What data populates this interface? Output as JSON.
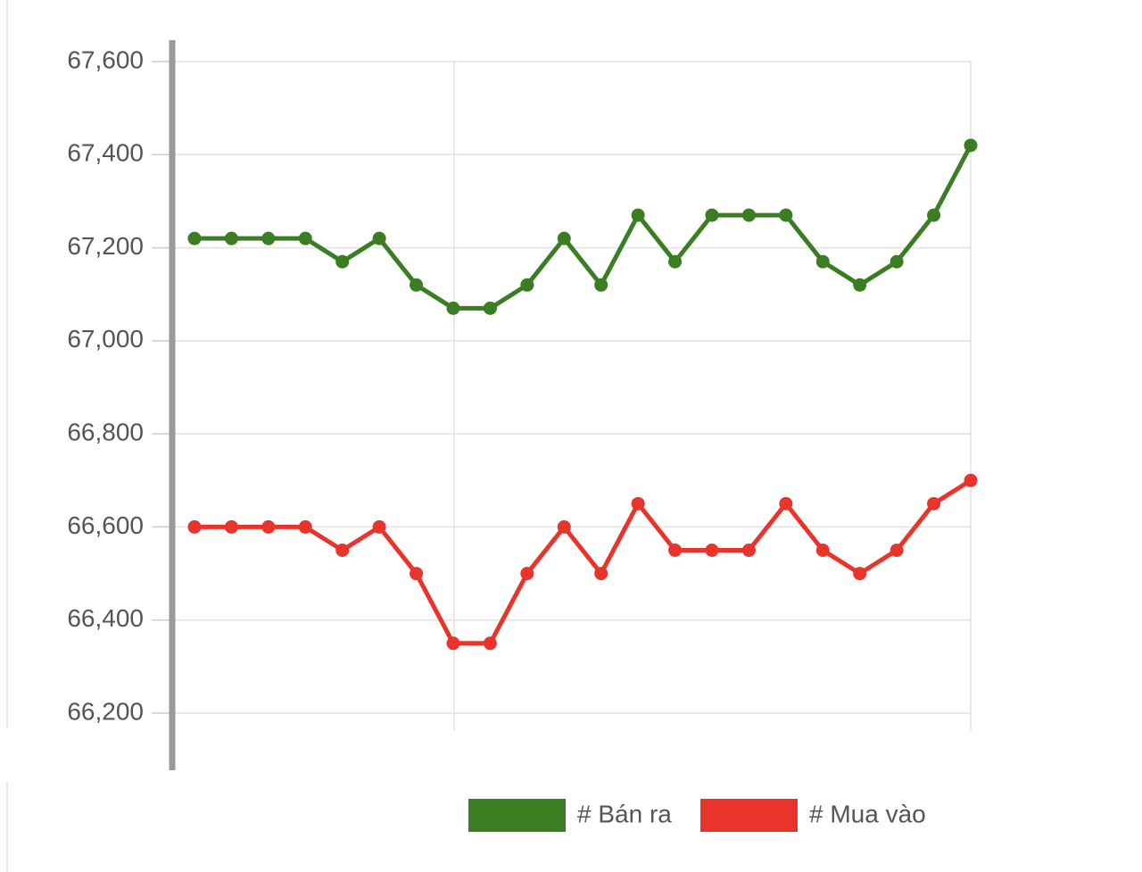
{
  "chart_data": {
    "type": "line",
    "categories": [
      null,
      null,
      null,
      null,
      null,
      null,
      null,
      null,
      null,
      null,
      null,
      null,
      null,
      null,
      null,
      null,
      null,
      null,
      null,
      null,
      null,
      null
    ],
    "series": [
      {
        "name": "# Bán ra",
        "color": "#3a7d22",
        "values": [
          67220,
          67220,
          67220,
          67220,
          67170,
          67220,
          67120,
          67070,
          67070,
          67120,
          67220,
          67120,
          67270,
          67170,
          67270,
          67270,
          67270,
          67170,
          67120,
          67170,
          67270,
          67420
        ]
      },
      {
        "name": "# Mua vào",
        "color": "#e8342a",
        "values": [
          66600,
          66600,
          66600,
          66600,
          66550,
          66600,
          66500,
          66350,
          66350,
          66500,
          66600,
          66500,
          66650,
          66550,
          66550,
          66550,
          66650,
          66550,
          66500,
          66550,
          66650,
          66700
        ]
      }
    ],
    "ylim": [
      66200,
      67600
    ],
    "yticks": [
      {
        "value": 66200,
        "label": "66,200"
      },
      {
        "value": 66400,
        "label": "66,400"
      },
      {
        "value": 66600,
        "label": "66,600"
      },
      {
        "value": 66800,
        "label": "66,800"
      },
      {
        "value": 67000,
        "label": "67,000"
      },
      {
        "value": 67200,
        "label": "67,200"
      },
      {
        "value": 67400,
        "label": "67,400"
      },
      {
        "value": 67600,
        "label": "67,600"
      }
    ],
    "grid": true,
    "legend": "bottom"
  }
}
